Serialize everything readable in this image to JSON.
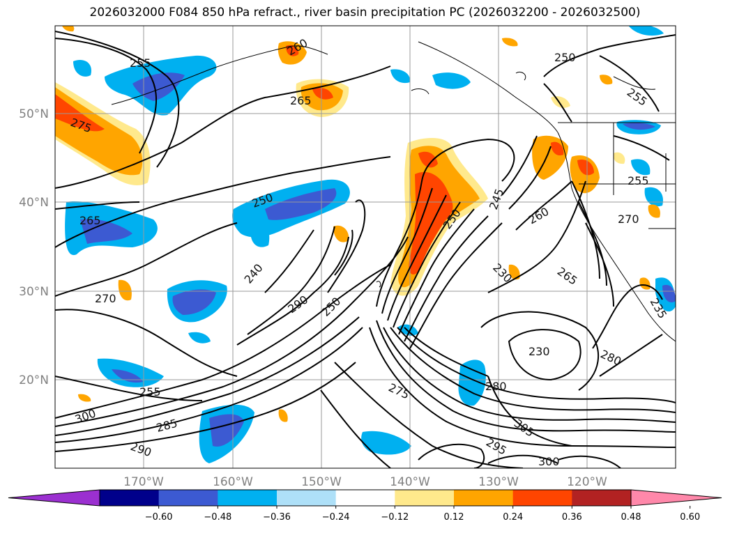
{
  "title": "2026032000 F084 850 hPa refract., river basin precipitation PC (2026032200 - 2026032500)",
  "map": {
    "lat_labels": [
      "50°N",
      "40°N",
      "30°N",
      "20°N"
    ],
    "lon_labels": [
      "170°W",
      "160°W",
      "150°W",
      "140°W",
      "130°W",
      "120°W"
    ],
    "contour_labels": [
      "255",
      "260",
      "265",
      "250",
      "255",
      "275",
      "265",
      "250",
      "245",
      "260",
      "250",
      "255",
      "270",
      "240",
      "230",
      "265",
      "270",
      "290",
      "250",
      "230",
      "280",
      "255",
      "280",
      "275",
      "300",
      "285",
      "305",
      "290",
      "295",
      "300",
      "235"
    ]
  },
  "colorbar": {
    "ticks": [
      "−0.60",
      "−0.48",
      "−0.36",
      "−0.24",
      "−0.12",
      "0.12",
      "0.24",
      "0.36",
      "0.48",
      "0.60"
    ],
    "colors": [
      "#9b30d0",
      "#00008b",
      "#3c5ad2",
      "#00b0f0",
      "#aee0f8",
      "#ffffff",
      "#ffe98c",
      "#ffa500",
      "#ff4500",
      "#b22222",
      "#ff88aa"
    ]
  }
}
